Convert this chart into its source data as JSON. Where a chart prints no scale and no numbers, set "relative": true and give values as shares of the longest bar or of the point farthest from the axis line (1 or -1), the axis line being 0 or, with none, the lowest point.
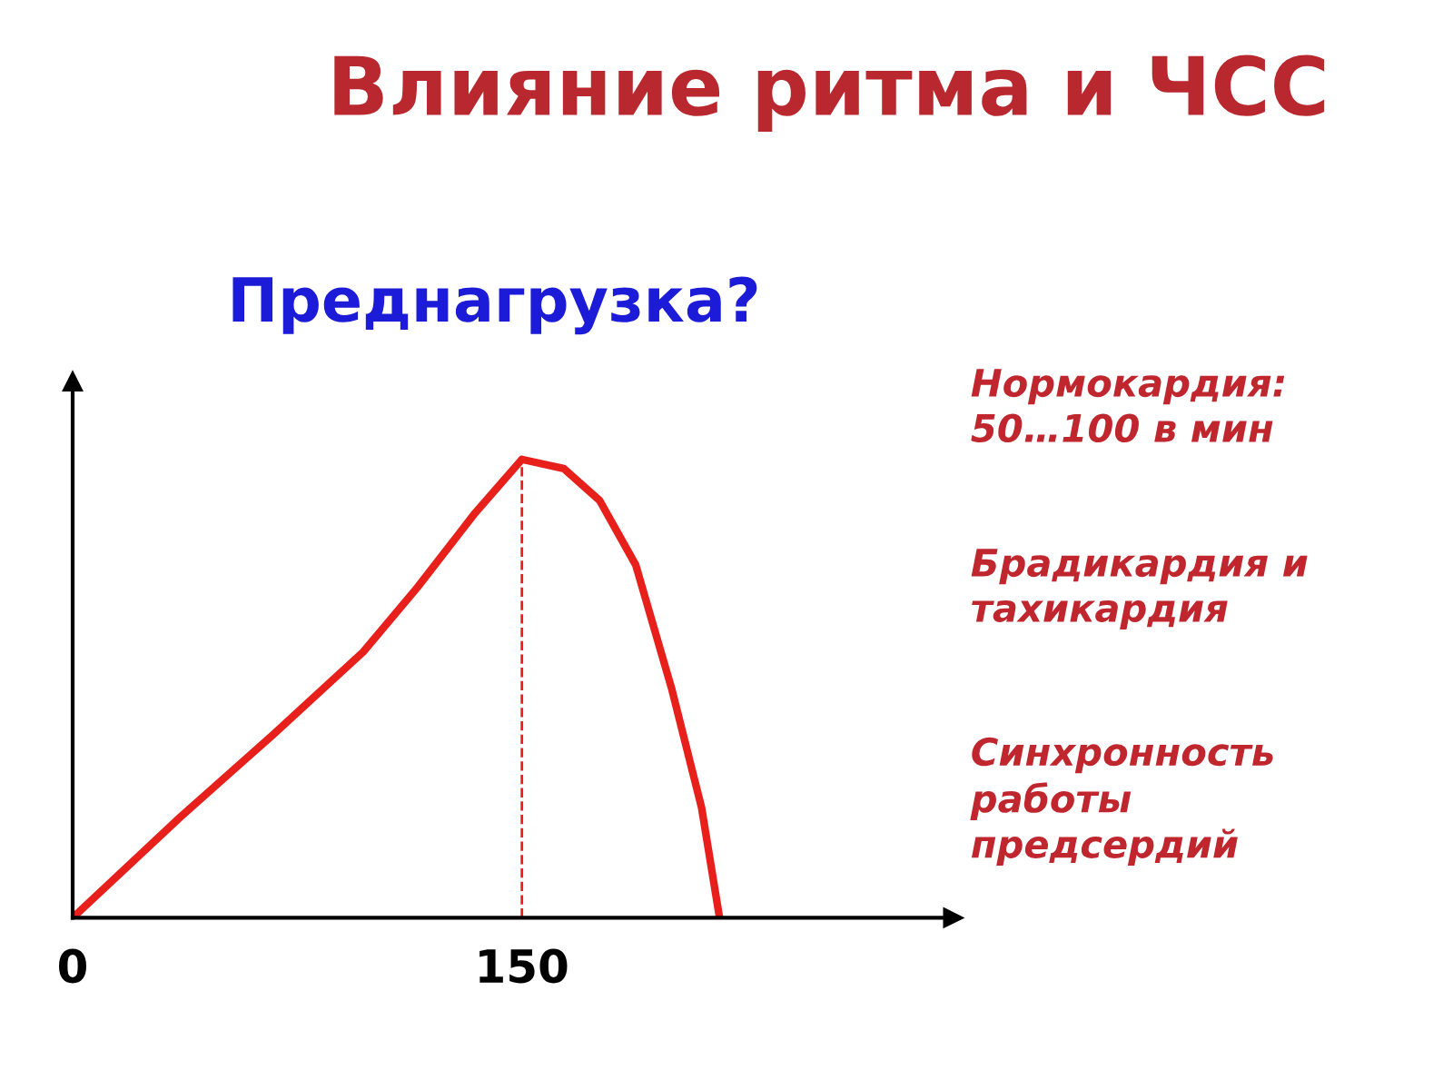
{
  "chart_data": {
    "type": "line",
    "title": "Влияние ритма и ЧСС",
    "subtitle": "Преднагрузка?",
    "x": [
      0,
      36,
      67,
      97,
      115,
      134,
      150,
      164,
      176,
      188,
      200,
      210,
      216
    ],
    "series": [
      {
        "color": "#e8201c",
        "values": [
          0,
          0.22,
          0.4,
          0.58,
          0.72,
          0.88,
          1.0,
          0.98,
          0.91,
          0.77,
          0.5,
          0.24,
          0
        ]
      }
    ],
    "relative": true,
    "xlim": [
      0,
      294
    ],
    "xticks": [
      0,
      150
    ],
    "tick_labels": "x",
    "ref_lines": [
      {
        "axis": "x",
        "value": 150,
        "color": "#e8201c",
        "line_style": "dashed"
      }
    ],
    "line_style": "solid",
    "annotations": [
      "Нормокардия:\n50…100 в мин",
      "Брадикардия и\nтахикардия",
      "Синхронность\nработы\nпредсердий"
    ]
  }
}
